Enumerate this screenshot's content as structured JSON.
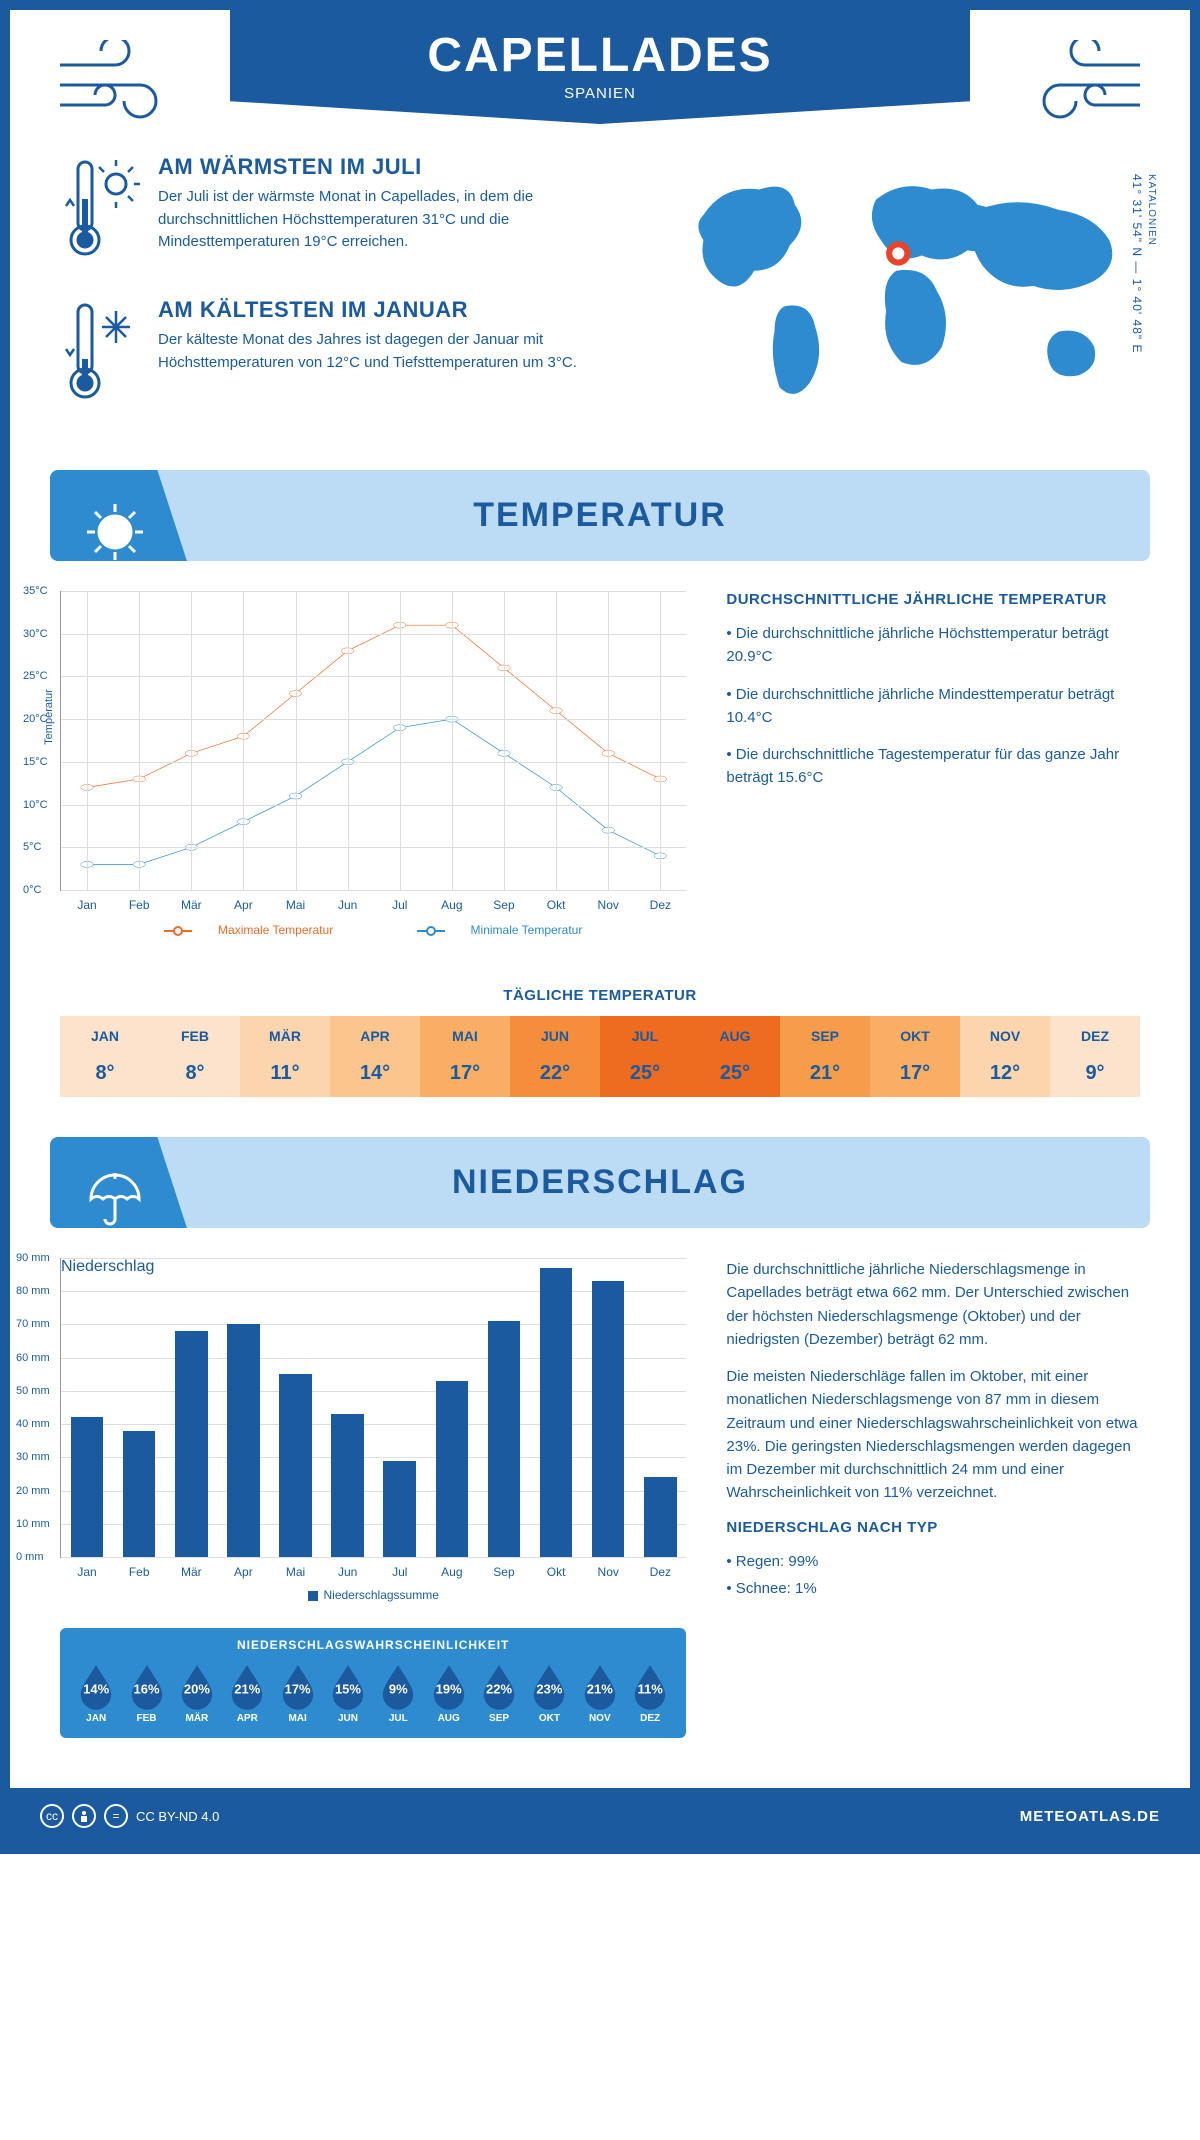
{
  "header": {
    "title": "CAPELLADES",
    "subtitle": "SPANIEN"
  },
  "coords": {
    "region": "KATALONIEN",
    "lat": "41° 31' 54\" N",
    "lon": "1° 40' 48\" E"
  },
  "colors": {
    "primary": "#1b5a9e",
    "accent_light": "#bcdcf5",
    "accent_mid": "#2f8bcf",
    "max_line": "#e86c2b",
    "min_line": "#2f8bcf",
    "map_fill": "#2f8bcf",
    "marker": "#e8432b"
  },
  "facts": {
    "warm": {
      "title": "AM WÄRMSTEN IM JULI",
      "text": "Der Juli ist der wärmste Monat in Capellades, in dem die durchschnittlichen Höchsttemperaturen 31°C und die Mindesttemperaturen 19°C erreichen."
    },
    "cold": {
      "title": "AM KÄLTESTEN IM JANUAR",
      "text": "Der kälteste Monat des Jahres ist dagegen der Januar mit Höchsttemperaturen von 12°C und Tiefsttemperaturen um 3°C."
    }
  },
  "sections": {
    "temp_title": "TEMPERATUR",
    "precip_title": "NIEDERSCHLAG"
  },
  "months": [
    "Jan",
    "Feb",
    "Mär",
    "Apr",
    "Mai",
    "Jun",
    "Jul",
    "Aug",
    "Sep",
    "Okt",
    "Nov",
    "Dez"
  ],
  "months_upper": [
    "JAN",
    "FEB",
    "MÄR",
    "APR",
    "MAI",
    "JUN",
    "JUL",
    "AUG",
    "SEP",
    "OKT",
    "NOV",
    "DEZ"
  ],
  "temp_chart": {
    "ylabel": "Temperatur",
    "ymin": 0,
    "ymax": 35,
    "ystep": 5,
    "ysuffix": "°C",
    "max_values": [
      12,
      13,
      16,
      18,
      23,
      28,
      31,
      31,
      26,
      21,
      16,
      13
    ],
    "min_values": [
      3,
      3,
      5,
      8,
      11,
      15,
      19,
      20,
      16,
      12,
      7,
      4
    ],
    "legend_max": "Maximale Temperatur",
    "legend_min": "Minimale Temperatur"
  },
  "temp_text": {
    "title": "DURCHSCHNITTLICHE JÄHRLICHE TEMPERATUR",
    "b1": "• Die durchschnittliche jährliche Höchsttemperatur beträgt 20.9°C",
    "b2": "• Die durchschnittliche jährliche Mindesttemperatur beträgt 10.4°C",
    "b3": "• Die durchschnittliche Tagestemperatur für das ganze Jahr beträgt 15.6°C"
  },
  "daily_temp": {
    "title": "TÄGLICHE TEMPERATUR",
    "values": [
      "8°",
      "8°",
      "11°",
      "14°",
      "17°",
      "22°",
      "25°",
      "25°",
      "21°",
      "17°",
      "12°",
      "9°"
    ],
    "bg_colors": [
      "#fde3cb",
      "#fde3cb",
      "#fcd4ae",
      "#fbc58e",
      "#f9ae63",
      "#f58e3a",
      "#ed6c1f",
      "#ed6c1f",
      "#f79c4a",
      "#f9ae63",
      "#fcd4ae",
      "#fde3cb"
    ]
  },
  "precip_chart": {
    "ylabel": "Niederschlag",
    "ymin": 0,
    "ymax": 90,
    "ystep": 10,
    "ysuffix": " mm",
    "values": [
      42,
      38,
      68,
      70,
      55,
      43,
      29,
      53,
      71,
      87,
      83,
      24
    ],
    "legend": "Niederschlagssumme"
  },
  "precip_text": {
    "p1": "Die durchschnittliche jährliche Niederschlagsmenge in Capellades beträgt etwa 662 mm. Der Unterschied zwischen der höchsten Niederschlagsmenge (Oktober) und der niedrigsten (Dezember) beträgt 62 mm.",
    "p2": "Die meisten Niederschläge fallen im Oktober, mit einer monatlichen Niederschlagsmenge von 87 mm in diesem Zeitraum und einer Niederschlagswahrscheinlichkeit von etwa 23%. Die geringsten Niederschlagsmengen werden dagegen im Dezember mit durchschnittlich 24 mm und einer Wahrscheinlichkeit von 11% verzeichnet.",
    "type_title": "NIEDERSCHLAG NACH TYP",
    "type1": "• Regen: 99%",
    "type2": "• Schnee: 1%"
  },
  "precip_prob": {
    "title": "NIEDERSCHLAGSWAHRSCHEINLICHKEIT",
    "values": [
      "14%",
      "16%",
      "20%",
      "21%",
      "17%",
      "15%",
      "9%",
      "19%",
      "22%",
      "23%",
      "21%",
      "11%"
    ]
  },
  "footer": {
    "license": "CC BY-ND 4.0",
    "brand": "METEOATLAS.DE"
  }
}
